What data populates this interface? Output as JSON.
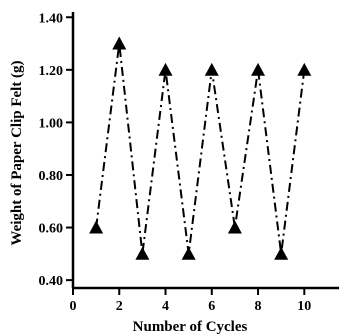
{
  "chart_data": {
    "type": "line",
    "title": "",
    "xlabel": "Number of Cycles",
    "ylabel": "Weight of Paper Clip Felt (g)",
    "xlim": [
      0,
      11.5
    ],
    "ylim": [
      0.37,
      1.42
    ],
    "x_ticks": [
      0,
      2,
      4,
      6,
      8,
      10
    ],
    "x_tick_labels": [
      "0",
      "2",
      "4",
      "6",
      "8",
      "10"
    ],
    "y_ticks": [
      0.4,
      0.6,
      0.8,
      1.0,
      1.2,
      1.4
    ],
    "y_tick_labels": [
      "0.40",
      "0.60",
      "0.80",
      "1.00",
      "1.20",
      "1.40"
    ],
    "grid": false,
    "legend": "none",
    "series": [
      {
        "marker": "triangle",
        "line_style": "dash-dot",
        "color": "#000000",
        "x": [
          1,
          2,
          3,
          4,
          5,
          6,
          7,
          8,
          9,
          10
        ],
        "y": [
          0.6,
          1.3,
          0.5,
          1.2,
          0.5,
          1.2,
          0.6,
          1.2,
          0.5,
          1.2
        ]
      }
    ]
  }
}
